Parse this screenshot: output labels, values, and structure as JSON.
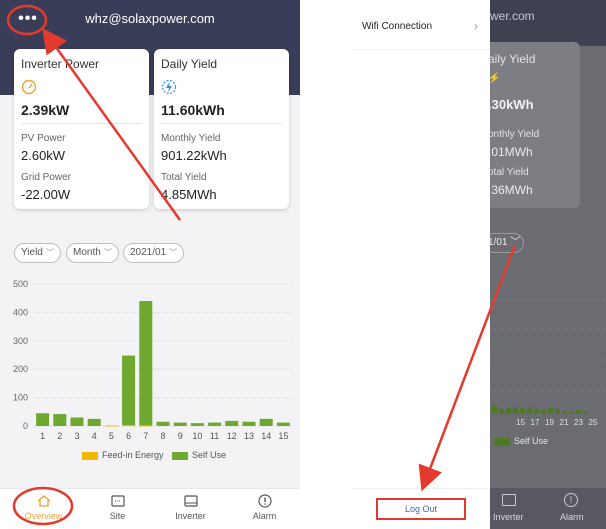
{
  "left": {
    "header": {
      "email": "whz@solaxpower.com",
      "menu_icon": "more-dots-icon"
    },
    "cards": {
      "inverter": {
        "title": "Inverter Power",
        "value": "2.39kW",
        "pv_label": "PV Power",
        "pv_value": "2.60kW",
        "grid_label": "Grid Power",
        "grid_value": "-22.00W"
      },
      "yield": {
        "title": "Daily Yield",
        "value": "11.60kWh",
        "monthly_label": "Monthly Yield",
        "monthly_value": "901.22kWh",
        "total_label": "Total Yield",
        "total_value": "4.85MWh"
      }
    },
    "filters": {
      "type": "Yield",
      "period": "Month",
      "date": "2021/01"
    },
    "tabs": [
      {
        "label": "Overview",
        "icon": "home-icon"
      },
      {
        "label": "Site",
        "icon": "site-icon"
      },
      {
        "label": "Inverter",
        "icon": "inverter-icon"
      },
      {
        "label": "Alarm",
        "icon": "alarm-icon"
      }
    ]
  },
  "chart_data": {
    "type": "bar",
    "categories": [
      "1",
      "2",
      "3",
      "4",
      "5",
      "6",
      "7",
      "8",
      "9",
      "10",
      "11",
      "12",
      "13",
      "14",
      "15"
    ],
    "series": [
      {
        "name": "Feed-in Energy",
        "color": "#f2b705",
        "values": [
          0,
          0,
          0,
          0,
          2,
          3,
          2,
          0,
          0,
          0,
          0,
          0,
          0,
          0,
          0
        ]
      },
      {
        "name": "Self Use",
        "color": "#6ea82e",
        "values": [
          45,
          42,
          30,
          25,
          0,
          245,
          438,
          15,
          12,
          10,
          12,
          18,
          15,
          25,
          12
        ]
      }
    ],
    "ylim": [
      0,
      500
    ],
    "yticks": [
      "0",
      "100",
      "200",
      "300",
      "400",
      "500"
    ],
    "grid": true,
    "legend": "bottom"
  },
  "right": {
    "menu": {
      "wifi_label": "Wifi Connection",
      "logout_label": "Log Out"
    },
    "dimmed": {
      "email": "wer.com",
      "yield_title": "aily Yield",
      "yield_value": ".30kWh",
      "monthly_label": "onthly Yield",
      "monthly_value": ".01MWh",
      "total_label": "otal Yield",
      "total_value": ".36MWh",
      "date": "1/01",
      "xticks": [
        "15",
        "17",
        "19",
        "21",
        "23",
        "25"
      ],
      "legend": "Self Use",
      "tab_inverter": "Inverter",
      "tab_alarm": "Alarm"
    }
  },
  "annotation_color": "#e23b2e"
}
